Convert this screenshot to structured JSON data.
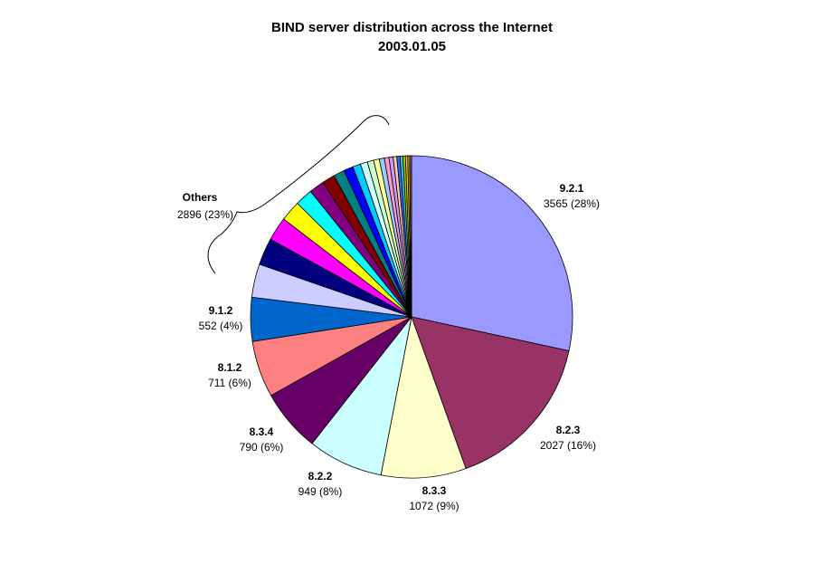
{
  "chart_data": {
    "type": "pie",
    "title": "BIND server distribution across the Internet",
    "subtitle": "2003.01.05",
    "slices": [
      {
        "name": "9.2.1",
        "value": 3565,
        "pct": "28%",
        "color": "#9999ff"
      },
      {
        "name": "8.2.3",
        "value": 2027,
        "pct": "16%",
        "color": "#993366"
      },
      {
        "name": "8.3.3",
        "value": 1072,
        "pct": "9%",
        "color": "#ffffcc"
      },
      {
        "name": "8.2.2",
        "value": 949,
        "pct": "8%",
        "color": "#ccffff"
      },
      {
        "name": "8.3.4",
        "value": 790,
        "pct": "6%",
        "color": "#660066"
      },
      {
        "name": "8.1.2",
        "value": 711,
        "pct": "6%",
        "color": "#ff8080"
      },
      {
        "name": "9.1.2",
        "value": 552,
        "pct": "4%",
        "color": "#0066cc"
      }
    ],
    "others": {
      "name": "Others",
      "value": 2896,
      "pct": "23%",
      "segments": [
        {
          "value": 420,
          "color": "#ccccff"
        },
        {
          "value": 340,
          "color": "#000080"
        },
        {
          "value": 300,
          "color": "#ff00ff"
        },
        {
          "value": 260,
          "color": "#ffff00"
        },
        {
          "value": 220,
          "color": "#00ffff"
        },
        {
          "value": 190,
          "color": "#800080"
        },
        {
          "value": 160,
          "color": "#800000"
        },
        {
          "value": 140,
          "color": "#008080"
        },
        {
          "value": 120,
          "color": "#0000ff"
        },
        {
          "value": 100,
          "color": "#00ccff"
        },
        {
          "value": 90,
          "color": "#ccffff"
        },
        {
          "value": 80,
          "color": "#ccffcc"
        },
        {
          "value": 72,
          "color": "#ffff99"
        },
        {
          "value": 64,
          "color": "#99ccff"
        },
        {
          "value": 58,
          "color": "#ff99cc"
        },
        {
          "value": 52,
          "color": "#cc99ff"
        },
        {
          "value": 46,
          "color": "#ffcc99"
        },
        {
          "value": 40,
          "color": "#3366ff"
        },
        {
          "value": 36,
          "color": "#33cccc"
        },
        {
          "value": 32,
          "color": "#99cc00"
        },
        {
          "value": 28,
          "color": "#ffcc00"
        },
        {
          "value": 24,
          "color": "#ff9900"
        },
        {
          "value": 24,
          "color": "#666699"
        }
      ]
    }
  }
}
